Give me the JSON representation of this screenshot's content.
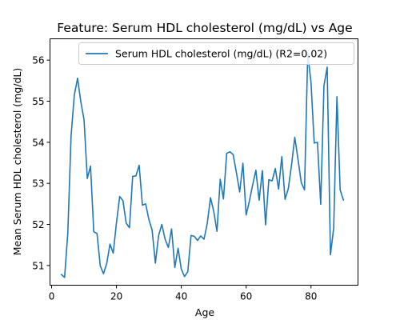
{
  "chart_data": {
    "type": "line",
    "title": "Feature: Serum HDL cholesterol (mg/dL) vs Age",
    "xlabel": "Age",
    "ylabel": "Mean Serum HDL cholesterol (mg/dL)",
    "xlim": [
      -0.5,
      94.5
    ],
    "ylim": [
      50.52,
      56.52
    ],
    "xticks": [
      0,
      20,
      40,
      60,
      80
    ],
    "yticks": [
      51,
      52,
      53,
      54,
      55,
      56
    ],
    "grid": false,
    "legend_position": "top-right",
    "colors": {
      "line": "#1f77b4",
      "axes": "#000000",
      "legend_border": "#cccccc"
    },
    "series": [
      {
        "name": "Serum HDL cholesterol (mg/dL) (R2=0.02)",
        "x": [
          3,
          4,
          5,
          6,
          7,
          8,
          9,
          10,
          11,
          12,
          13,
          14,
          15,
          16,
          17,
          18,
          19,
          20,
          21,
          22,
          23,
          24,
          25,
          26,
          27,
          28,
          29,
          30,
          31,
          32,
          33,
          34,
          35,
          36,
          37,
          38,
          39,
          40,
          41,
          42,
          43,
          44,
          45,
          46,
          47,
          48,
          49,
          50,
          51,
          52,
          53,
          54,
          55,
          56,
          57,
          58,
          59,
          60,
          61,
          62,
          63,
          64,
          65,
          66,
          67,
          68,
          69,
          70,
          71,
          72,
          73,
          74,
          75,
          76,
          77,
          78,
          79,
          80,
          81,
          82,
          83,
          84,
          85,
          86,
          87,
          88,
          89,
          90
        ],
        "y": [
          50.78,
          50.71,
          51.8,
          54.15,
          55.15,
          55.56,
          54.99,
          54.55,
          53.12,
          53.42,
          51.82,
          51.78,
          50.99,
          50.8,
          51.05,
          51.52,
          51.3,
          52.04,
          52.68,
          52.58,
          52.03,
          51.92,
          53.17,
          53.18,
          53.44,
          52.47,
          52.5,
          52.12,
          51.86,
          51.06,
          51.73,
          52.0,
          51.64,
          51.44,
          51.89,
          50.95,
          51.42,
          50.91,
          50.73,
          50.85,
          51.73,
          51.71,
          51.61,
          51.72,
          51.64,
          52.02,
          52.65,
          52.32,
          51.83,
          53.1,
          52.62,
          53.73,
          53.77,
          53.7,
          53.26,
          52.79,
          53.49,
          52.23,
          52.57,
          52.96,
          53.32,
          52.59,
          53.31,
          51.99,
          53.09,
          53.06,
          53.36,
          52.86,
          53.65,
          52.61,
          52.87,
          53.45,
          54.12,
          53.58,
          53.02,
          52.84,
          56.17,
          55.46,
          53.98,
          54.0,
          52.49,
          55.38,
          55.83,
          51.26,
          51.91,
          55.11,
          52.84,
          52.59
        ]
      }
    ]
  }
}
